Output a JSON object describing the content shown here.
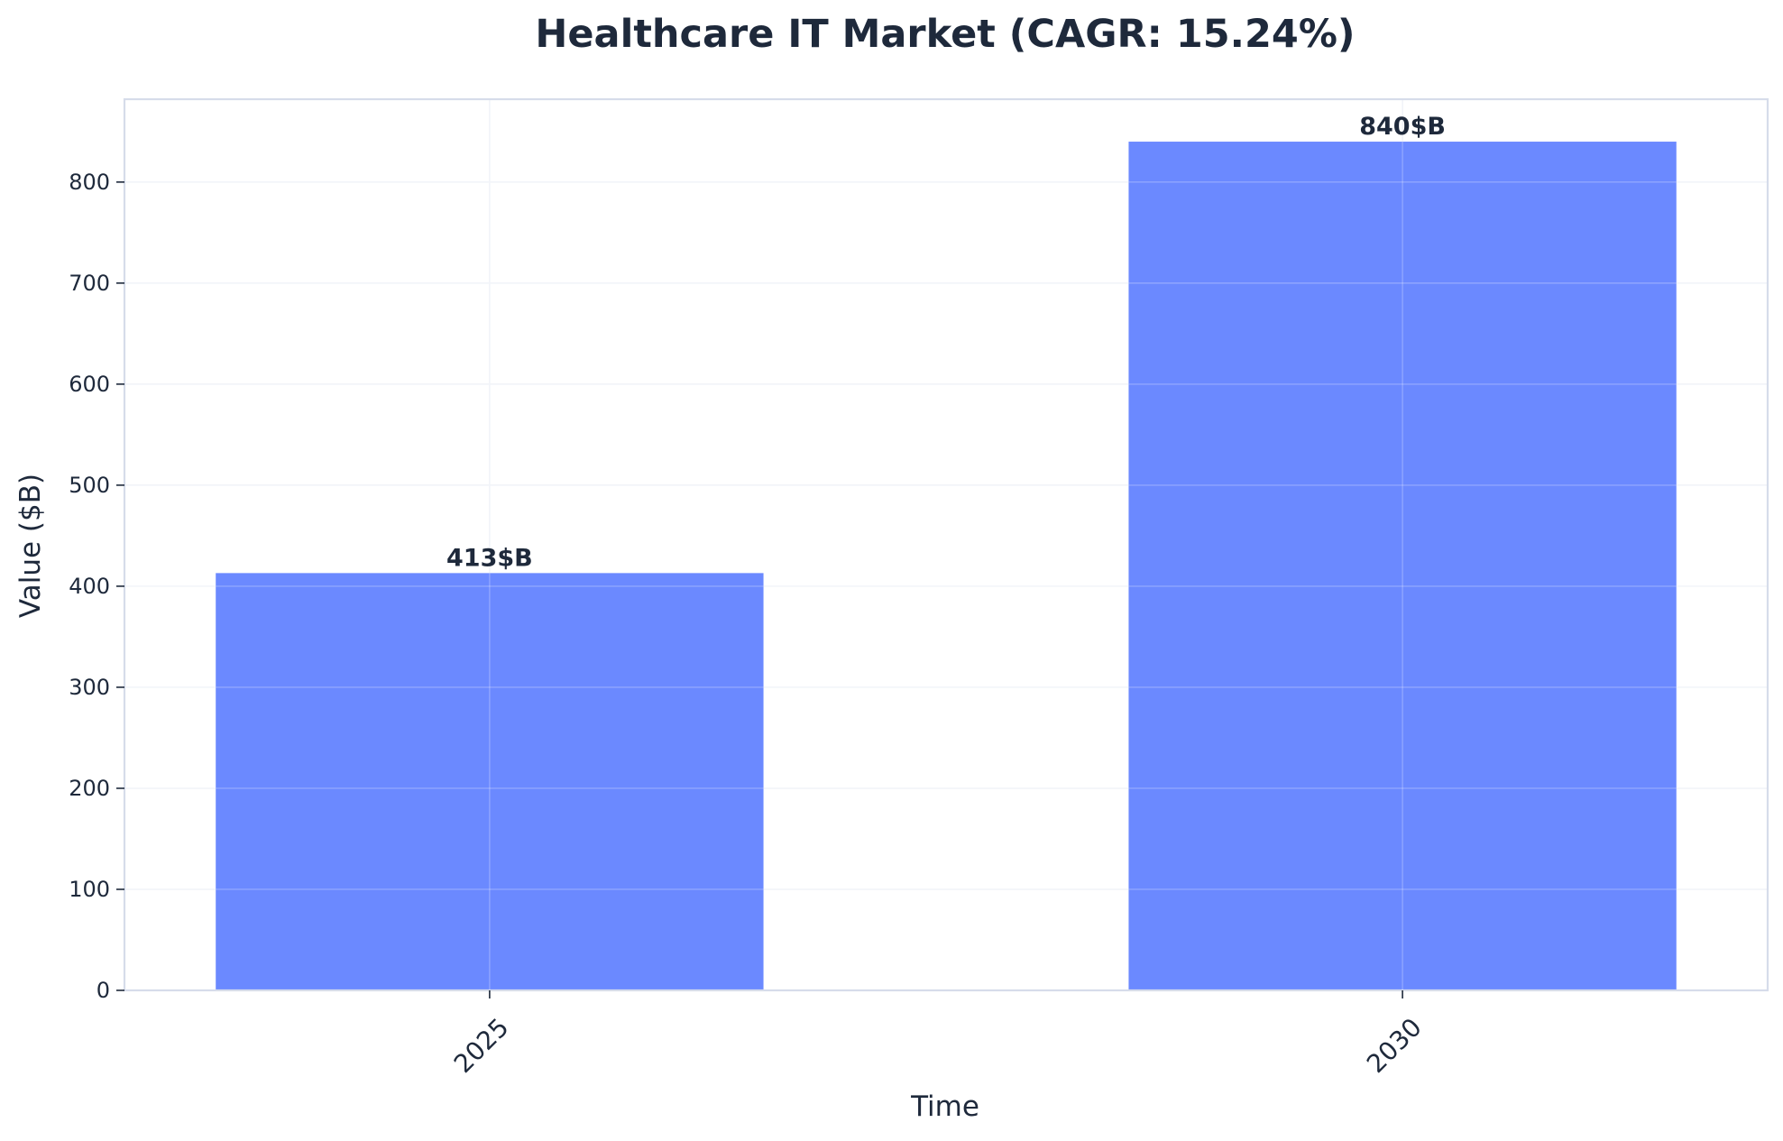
{
  "chart_data": {
    "type": "bar",
    "title": "Healthcare IT Market (CAGR: 15.24%)",
    "xlabel": "Time",
    "ylabel": "Value ($B)",
    "categories": [
      "2025",
      "2030"
    ],
    "values": [
      413,
      840
    ],
    "data_labels": [
      "413$B",
      "840$B"
    ],
    "ylim": [
      0,
      882
    ],
    "yticks": [
      0,
      100,
      200,
      300,
      400,
      500,
      600,
      700,
      800
    ],
    "grid": true,
    "bar_color": "#6b89ff",
    "text_color": "#1e293b"
  }
}
